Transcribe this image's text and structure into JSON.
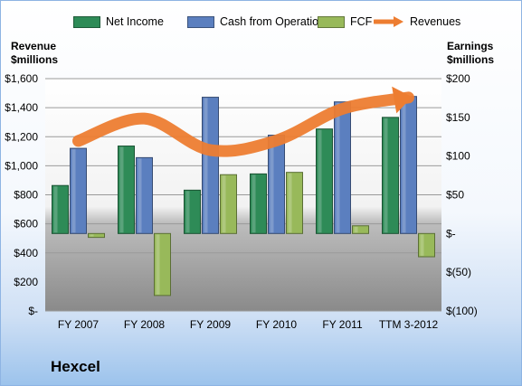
{
  "company": "Hexcel",
  "left_axis_title": [
    "Revenue",
    "$millions"
  ],
  "right_axis_title": [
    "Earnings",
    "$millions"
  ],
  "colors": {
    "net_income": "#2e8b57",
    "cash_from_operations": "#5b7fbf",
    "fcf": "#98b95a",
    "revenues": "#ed7d31"
  },
  "legend": [
    "Net Income",
    "Cash from Operations",
    "FCF",
    "Revenues"
  ],
  "chart_data": {
    "type": "bar",
    "categories": [
      "FY 2007",
      "FY 2008",
      "FY 2009",
      "FY 2010",
      "FY 2011",
      "TTM 3-2012"
    ],
    "series": [
      {
        "name": "Net Income",
        "axis": "right",
        "values": [
          62,
          113,
          56,
          77,
          135,
          150
        ]
      },
      {
        "name": "Cash from Operations",
        "axis": "right",
        "values": [
          110,
          98,
          176,
          127,
          170,
          177
        ]
      },
      {
        "name": "FCF",
        "axis": "right",
        "values": [
          -5,
          -80,
          76,
          79,
          10,
          -30
        ]
      },
      {
        "name": "Revenues",
        "axis": "left",
        "type": "line",
        "values": [
          1171,
          1325,
          1108,
          1174,
          1392,
          1470
        ]
      }
    ],
    "left_axis": {
      "ylim": [
        0,
        1600
      ],
      "ticks": [
        "$-",
        "$200",
        "$400",
        "$600",
        "$800",
        "$1,000",
        "$1,200",
        "$1,400",
        "$1,600"
      ]
    },
    "right_axis": {
      "ylim": [
        -100,
        200
      ],
      "ticks": [
        "$(100)",
        "$(50)",
        "$-",
        "$50",
        "$100",
        "$150",
        "$200"
      ]
    },
    "grid": true,
    "legend_position": "top"
  }
}
